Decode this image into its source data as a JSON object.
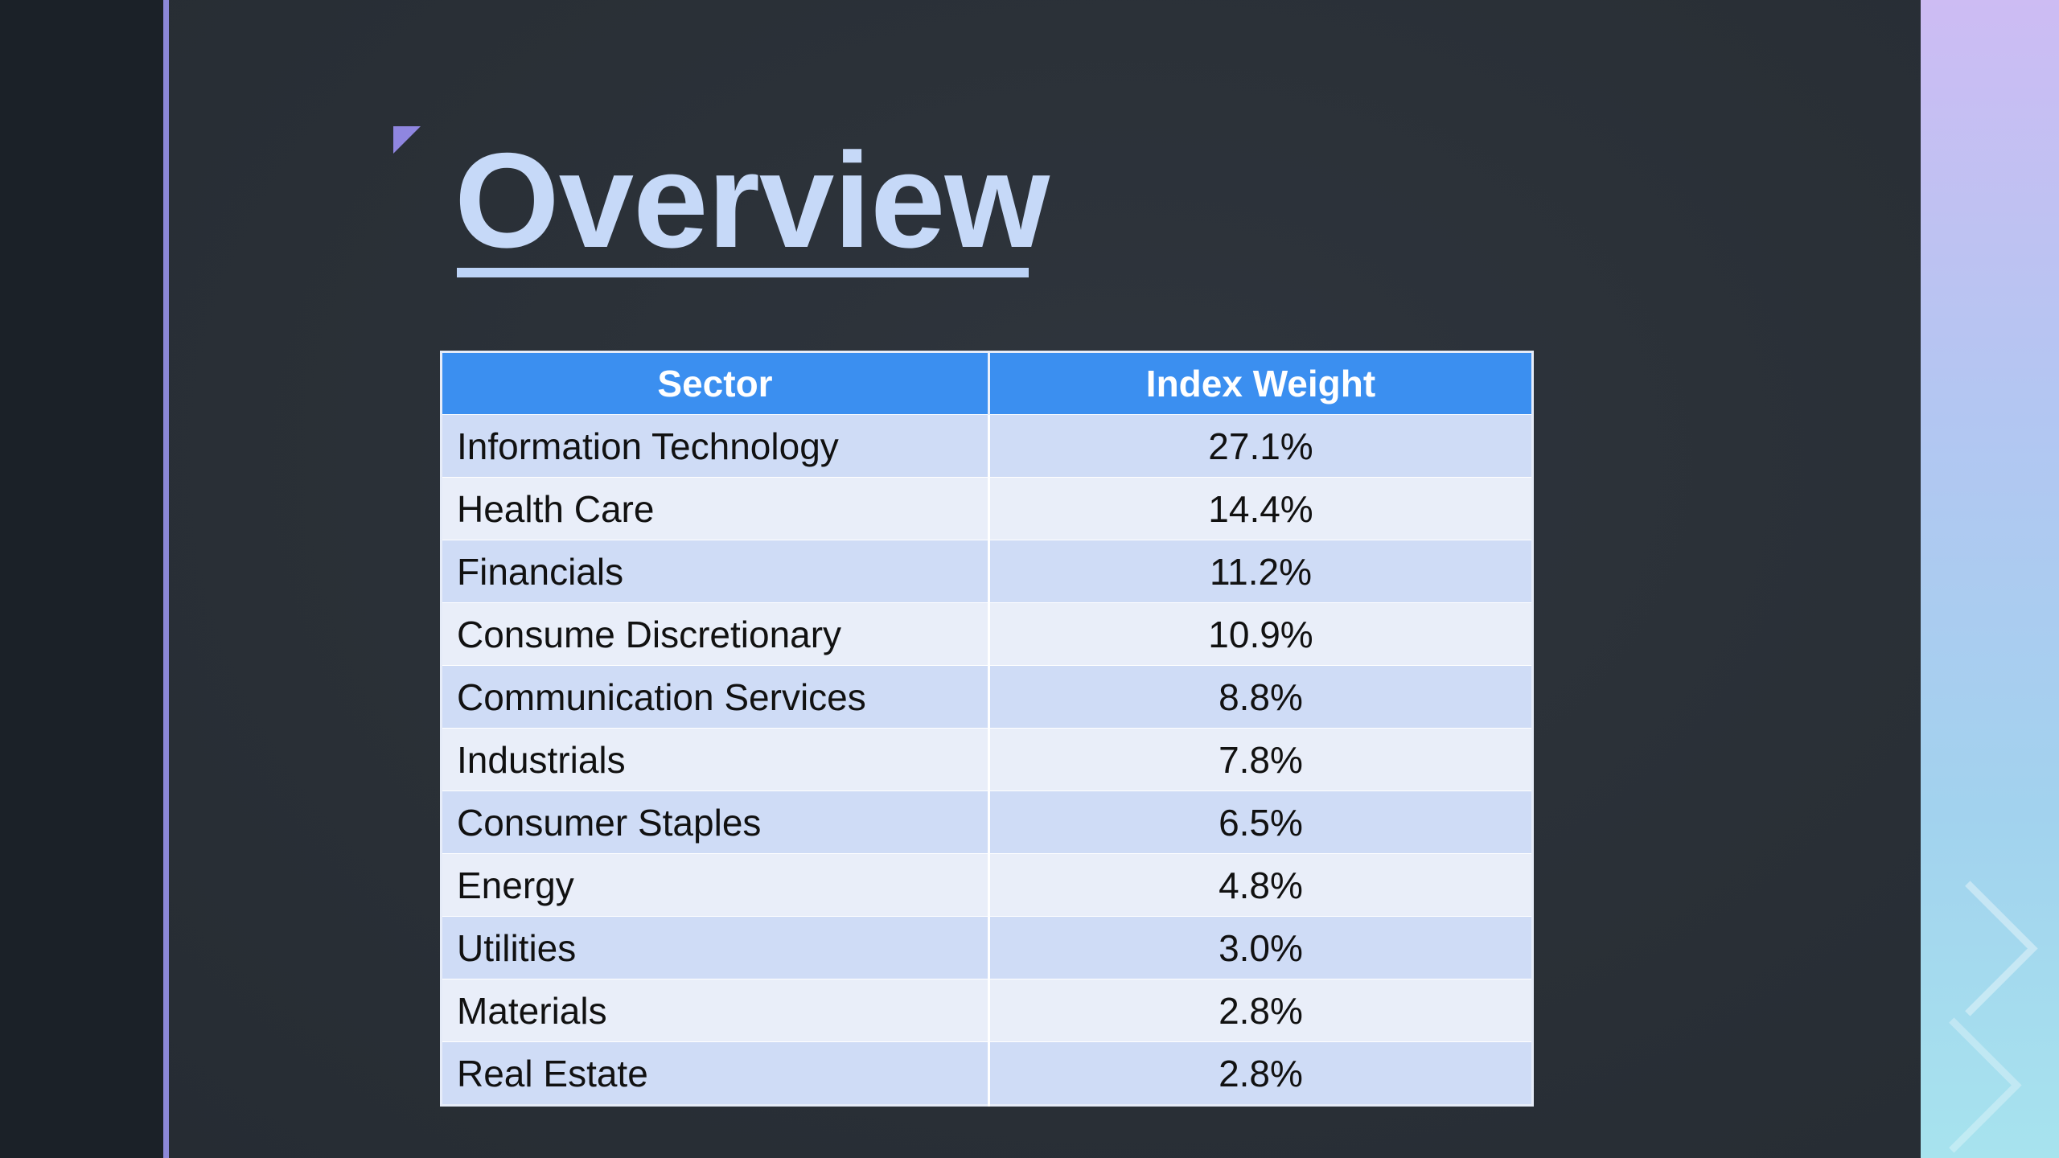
{
  "slide": {
    "title": "Overview"
  },
  "table": {
    "headers": [
      "Sector",
      "Index Weight"
    ],
    "rows": [
      [
        "Information Technology",
        "27.1%"
      ],
      [
        "Health Care",
        "14.4%"
      ],
      [
        "Financials",
        "11.2%"
      ],
      [
        "Consume Discretionary",
        "10.9%"
      ],
      [
        "Communication Services",
        "8.8%"
      ],
      [
        "Industrials",
        "7.8%"
      ],
      [
        "Consumer Staples",
        "6.5%"
      ],
      [
        "Energy",
        "4.8%"
      ],
      [
        "Utilities",
        "3.0%"
      ],
      [
        "Materials",
        "2.8%"
      ],
      [
        "Real Estate",
        "2.8%"
      ]
    ]
  },
  "colors": {
    "header_fill": "#3b8ff0",
    "row_band_a": "#cfdcf6",
    "row_band_b": "#e9eef9",
    "title_color": "#c6d9f8",
    "accent": "#8f86e0"
  },
  "icons": {
    "corner_mark": "corner-triangle-icon",
    "decor_chevrons": "chevron-right-icon"
  }
}
